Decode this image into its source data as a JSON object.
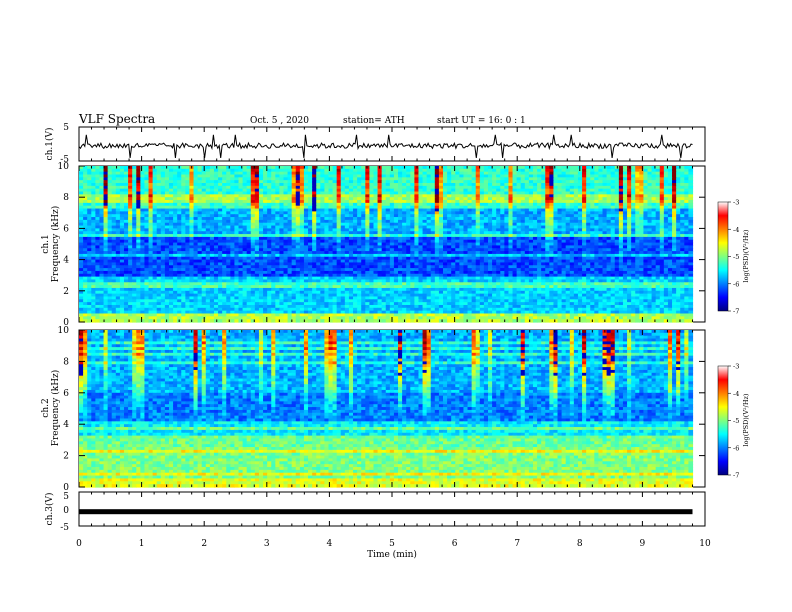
{
  "header": {
    "title": "VLF Spectra",
    "date": "Oct. 5  , 2020",
    "station": "station= ATH",
    "start": "start  UT  =   16: 0  : 1"
  },
  "chart_data": [
    {
      "type": "line",
      "id": "ch1_waveform",
      "ylabel": "ch.1(V)",
      "ylim": [
        -5,
        5
      ],
      "yticks": [
        "5",
        "-5"
      ],
      "xlim": [
        0,
        10
      ],
      "level": -0.5,
      "trace_end": 9.8
    },
    {
      "type": "heatmap",
      "id": "ch1_spectrogram",
      "ylabel": "ch.1\nFrequency (kHz)",
      "ylabel_line1": "ch.1",
      "ylabel_line2": "Frequency (kHz)",
      "ylim": [
        0,
        10
      ],
      "yticks": [
        "0",
        "2",
        "4",
        "6",
        "8",
        "10"
      ],
      "xlim": [
        0,
        10
      ],
      "data_end": 9.8,
      "colorbar": {
        "label": "log(PSD)(V²/Hz)",
        "range": [
          -7,
          -3
        ],
        "ticks": [
          "-3",
          "-4",
          "-5",
          "-6",
          "-7"
        ],
        "colors": [
          "#00007f",
          "#0000ff",
          "#007fff",
          "#00ffff",
          "#7fff7f",
          "#ffff00",
          "#ff7f00",
          "#ff0000",
          "#ffffff"
        ]
      }
    },
    {
      "type": "heatmap",
      "id": "ch2_spectrogram",
      "ylabel": "ch.2\nFrequency (kHz)",
      "ylabel_line1": "ch.2",
      "ylabel_line2": "Frequency (kHz)",
      "ylim": [
        0,
        10
      ],
      "yticks": [
        "0",
        "2",
        "4",
        "6",
        "8",
        "10"
      ],
      "xlim": [
        0,
        10
      ],
      "data_end": 9.8,
      "colorbar": {
        "label": "log(PSD)(V²/Hz)",
        "range": [
          -7,
          -3
        ],
        "ticks": [
          "-3",
          "-4",
          "-5",
          "-6",
          "-7"
        ],
        "colors": [
          "#00007f",
          "#0000ff",
          "#007fff",
          "#00ffff",
          "#7fff7f",
          "#ffff00",
          "#ff7f00",
          "#ff0000",
          "#ffffff"
        ]
      }
    },
    {
      "type": "line",
      "id": "ch3_waveform",
      "ylabel": "ch.3(V)",
      "ylim": [
        -5,
        5
      ],
      "yticks": [
        "5",
        "0",
        "-5"
      ],
      "xlim": [
        0,
        10
      ],
      "level": -0.8,
      "trace_end": 9.8
    }
  ],
  "xaxis": {
    "label": "Time  (min)",
    "ticks": [
      "0",
      "1",
      "2",
      "3",
      "4",
      "5",
      "6",
      "7",
      "8",
      "9",
      "10"
    ],
    "range": [
      0,
      10
    ]
  }
}
